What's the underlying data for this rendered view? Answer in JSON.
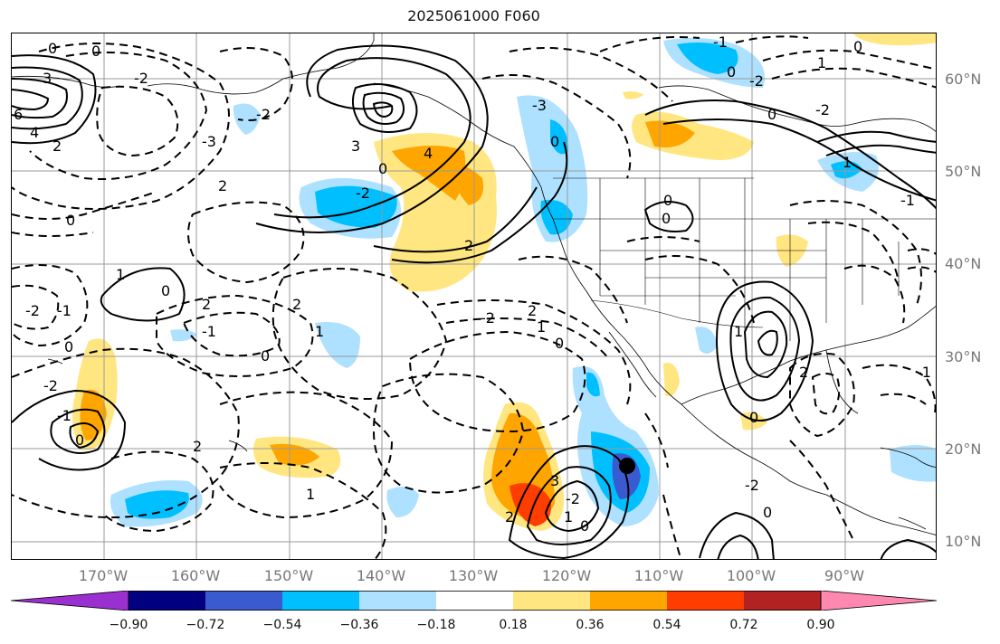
{
  "title": "2025061000 F060",
  "map": {
    "lat_labels": [
      "60°N",
      "50°N",
      "40°N",
      "30°N",
      "20°N",
      "10°N"
    ],
    "lon_labels": [
      "170°W",
      "160°W",
      "150°W",
      "140°W",
      "130°W",
      "120°W",
      "110°W",
      "100°W",
      "90°W"
    ],
    "contour_labels": [
      "0",
      "0",
      "3",
      "6",
      "4",
      "2",
      "-2",
      "-3",
      "2",
      "3",
      "4",
      "0",
      "-2",
      "2",
      "-2",
      "0",
      "1",
      "0",
      "-1",
      "-2",
      "2",
      "-1",
      "0",
      "1",
      "2",
      "0",
      "-2",
      "-1",
      "0",
      "2",
      "1",
      "-2",
      "2",
      "1",
      "0",
      "3",
      "-2",
      "1",
      "0",
      "2",
      "-3",
      "0",
      "-1",
      "-2",
      "0",
      "0",
      "-2",
      "1",
      "0",
      "1",
      "-1",
      "0",
      "0",
      "1",
      "2",
      "0",
      "-1",
      "-2",
      "0"
    ],
    "marker": "black-dot"
  },
  "colorbar": {
    "tick_labels": [
      "−0.90",
      "−0.72",
      "−0.54",
      "−0.36",
      "−0.18",
      "0.18",
      "0.36",
      "0.54",
      "0.72",
      "0.90"
    ],
    "colors": [
      "#9b30d0",
      "#000080",
      "#3a5bd0",
      "#00bfff",
      "#aee0ff",
      "#ffffff",
      "#ffe680",
      "#ffa500",
      "#ff3d00",
      "#b22222",
      "#ff88b0"
    ]
  },
  "colors": {
    "neg_light": "#aee0ff",
    "neg_mid": "#00bfff",
    "neg_strong": "#3a5bd0",
    "pos_light": "#ffe680",
    "pos_mid": "#ffa500",
    "pos_strong": "#ff3d00"
  }
}
